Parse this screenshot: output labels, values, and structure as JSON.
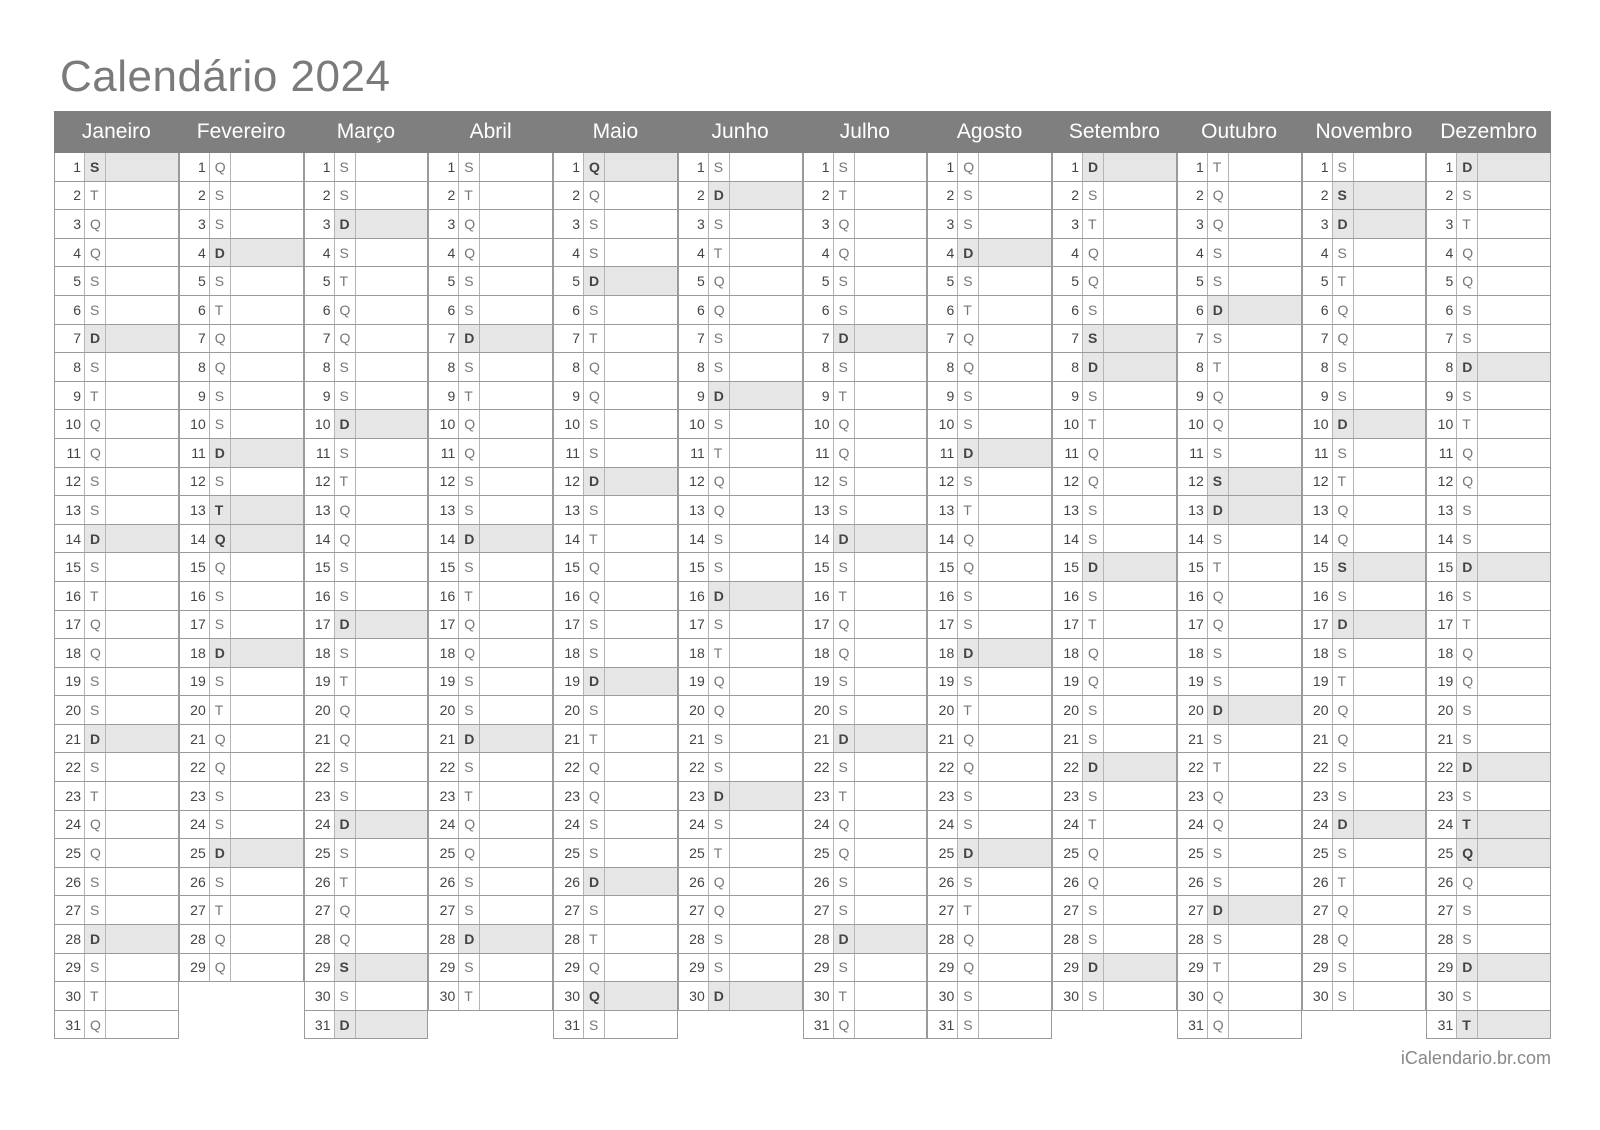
{
  "title": "Calendário 2024",
  "footer": "iCalendario.br.com",
  "colors": {
    "header_bg": "#7f7f7f",
    "shade": "#e6e6e6",
    "title": "#7a7a7a"
  },
  "months": [
    {
      "name": "Janeiro",
      "days": [
        "S",
        "T",
        "Q",
        "Q",
        "S",
        "S",
        "D",
        "S",
        "T",
        "Q",
        "Q",
        "S",
        "S",
        "D",
        "S",
        "T",
        "Q",
        "Q",
        "S",
        "S",
        "D",
        "S",
        "T",
        "Q",
        "Q",
        "S",
        "S",
        "D",
        "S",
        "T",
        "Q"
      ],
      "shaded": [
        1,
        7,
        14,
        21,
        28
      ]
    },
    {
      "name": "Fevereiro",
      "days": [
        "Q",
        "S",
        "S",
        "D",
        "S",
        "T",
        "Q",
        "Q",
        "S",
        "S",
        "D",
        "S",
        "T",
        "Q",
        "Q",
        "S",
        "S",
        "D",
        "S",
        "T",
        "Q",
        "Q",
        "S",
        "S",
        "D",
        "S",
        "T",
        "Q",
        "Q"
      ],
      "shaded": [
        4,
        11,
        13,
        14,
        18,
        25
      ]
    },
    {
      "name": "Março",
      "days": [
        "S",
        "S",
        "D",
        "S",
        "T",
        "Q",
        "Q",
        "S",
        "S",
        "D",
        "S",
        "T",
        "Q",
        "Q",
        "S",
        "S",
        "D",
        "S",
        "T",
        "Q",
        "Q",
        "S",
        "S",
        "D",
        "S",
        "T",
        "Q",
        "Q",
        "S",
        "S",
        "D"
      ],
      "shaded": [
        3,
        10,
        17,
        24,
        29,
        31
      ]
    },
    {
      "name": "Abril",
      "days": [
        "S",
        "T",
        "Q",
        "Q",
        "S",
        "S",
        "D",
        "S",
        "T",
        "Q",
        "Q",
        "S",
        "S",
        "D",
        "S",
        "T",
        "Q",
        "Q",
        "S",
        "S",
        "D",
        "S",
        "T",
        "Q",
        "Q",
        "S",
        "S",
        "D",
        "S",
        "T"
      ],
      "shaded": [
        7,
        14,
        21,
        28
      ]
    },
    {
      "name": "Maio",
      "days": [
        "Q",
        "Q",
        "S",
        "S",
        "D",
        "S",
        "T",
        "Q",
        "Q",
        "S",
        "S",
        "D",
        "S",
        "T",
        "Q",
        "Q",
        "S",
        "S",
        "D",
        "S",
        "T",
        "Q",
        "Q",
        "S",
        "S",
        "D",
        "S",
        "T",
        "Q",
        "Q",
        "S"
      ],
      "shaded": [
        1,
        5,
        12,
        19,
        26,
        30
      ]
    },
    {
      "name": "Junho",
      "days": [
        "S",
        "D",
        "S",
        "T",
        "Q",
        "Q",
        "S",
        "S",
        "D",
        "S",
        "T",
        "Q",
        "Q",
        "S",
        "S",
        "D",
        "S",
        "T",
        "Q",
        "Q",
        "S",
        "S",
        "D",
        "S",
        "T",
        "Q",
        "Q",
        "S",
        "S",
        "D"
      ],
      "shaded": [
        2,
        9,
        16,
        23,
        30
      ]
    },
    {
      "name": "Julho",
      "days": [
        "S",
        "T",
        "Q",
        "Q",
        "S",
        "S",
        "D",
        "S",
        "T",
        "Q",
        "Q",
        "S",
        "S",
        "D",
        "S",
        "T",
        "Q",
        "Q",
        "S",
        "S",
        "D",
        "S",
        "T",
        "Q",
        "Q",
        "S",
        "S",
        "D",
        "S",
        "T",
        "Q"
      ],
      "shaded": [
        7,
        14,
        21,
        28
      ]
    },
    {
      "name": "Agosto",
      "days": [
        "Q",
        "S",
        "S",
        "D",
        "S",
        "T",
        "Q",
        "Q",
        "S",
        "S",
        "D",
        "S",
        "T",
        "Q",
        "Q",
        "S",
        "S",
        "D",
        "S",
        "T",
        "Q",
        "Q",
        "S",
        "S",
        "D",
        "S",
        "T",
        "Q",
        "Q",
        "S",
        "S"
      ],
      "shaded": [
        4,
        11,
        18,
        25
      ]
    },
    {
      "name": "Setembro",
      "days": [
        "D",
        "S",
        "T",
        "Q",
        "Q",
        "S",
        "S",
        "D",
        "S",
        "T",
        "Q",
        "Q",
        "S",
        "S",
        "D",
        "S",
        "T",
        "Q",
        "Q",
        "S",
        "S",
        "D",
        "S",
        "T",
        "Q",
        "Q",
        "S",
        "S",
        "D",
        "S"
      ],
      "shaded": [
        1,
        7,
        8,
        15,
        22,
        29
      ]
    },
    {
      "name": "Outubro",
      "days": [
        "T",
        "Q",
        "Q",
        "S",
        "S",
        "D",
        "S",
        "T",
        "Q",
        "Q",
        "S",
        "S",
        "D",
        "S",
        "T",
        "Q",
        "Q",
        "S",
        "S",
        "D",
        "S",
        "T",
        "Q",
        "Q",
        "S",
        "S",
        "D",
        "S",
        "T",
        "Q",
        "Q"
      ],
      "shaded": [
        6,
        12,
        13,
        20,
        27
      ]
    },
    {
      "name": "Novembro",
      "days": [
        "S",
        "S",
        "D",
        "S",
        "T",
        "Q",
        "Q",
        "S",
        "S",
        "D",
        "S",
        "T",
        "Q",
        "Q",
        "S",
        "S",
        "D",
        "S",
        "T",
        "Q",
        "Q",
        "S",
        "S",
        "D",
        "S",
        "T",
        "Q",
        "Q",
        "S",
        "S"
      ],
      "shaded": [
        2,
        3,
        10,
        15,
        17,
        24
      ]
    },
    {
      "name": "Dezembro",
      "days": [
        "D",
        "S",
        "T",
        "Q",
        "Q",
        "S",
        "S",
        "D",
        "S",
        "T",
        "Q",
        "Q",
        "S",
        "S",
        "D",
        "S",
        "T",
        "Q",
        "Q",
        "S",
        "S",
        "D",
        "S",
        "T",
        "Q",
        "Q",
        "S",
        "S",
        "D",
        "S",
        "T"
      ],
      "shaded": [
        1,
        8,
        15,
        22,
        24,
        25,
        29,
        31
      ]
    }
  ]
}
